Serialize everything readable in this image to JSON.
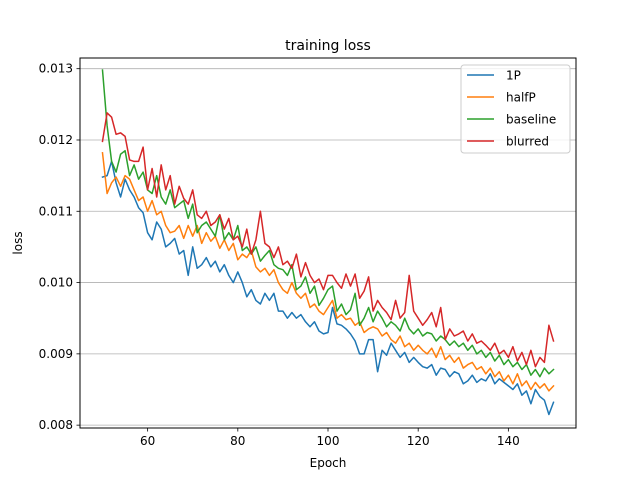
{
  "chart_data": {
    "type": "line",
    "title": "training loss",
    "xlabel": "Epoch",
    "ylabel": "loss",
    "xlim": [
      45,
      155
    ],
    "ylim": [
      0.00796,
      0.01315
    ],
    "xticks": [
      60,
      80,
      100,
      120,
      140
    ],
    "yticks": [
      0.008,
      0.009,
      0.01,
      0.011,
      0.012,
      0.013
    ],
    "grid": "horizontal",
    "legend_position": "top-right",
    "x": [
      50,
      51,
      52,
      53,
      54,
      55,
      56,
      57,
      58,
      59,
      60,
      61,
      62,
      63,
      64,
      65,
      66,
      67,
      68,
      69,
      70,
      71,
      72,
      73,
      74,
      75,
      76,
      77,
      78,
      79,
      80,
      81,
      82,
      83,
      84,
      85,
      86,
      87,
      88,
      89,
      90,
      91,
      92,
      93,
      94,
      95,
      96,
      97,
      98,
      99,
      100,
      101,
      102,
      103,
      104,
      105,
      106,
      107,
      108,
      109,
      110,
      111,
      112,
      113,
      114,
      115,
      116,
      117,
      118,
      119,
      120,
      121,
      122,
      123,
      124,
      125,
      126,
      127,
      128,
      129,
      130,
      131,
      132,
      133,
      134,
      135,
      136,
      137,
      138,
      139,
      140,
      141,
      142,
      143,
      144,
      145,
      146,
      147,
      148,
      149,
      150
    ],
    "series": [
      {
        "name": "1P",
        "color": "#1f77b4",
        "values": [
          0.01148,
          0.0115,
          0.0117,
          0.0114,
          0.0112,
          0.01145,
          0.0113,
          0.0112,
          0.01105,
          0.01098,
          0.0107,
          0.0106,
          0.01085,
          0.01075,
          0.0105,
          0.01055,
          0.01062,
          0.0104,
          0.01045,
          0.0101,
          0.0105,
          0.0102,
          0.01025,
          0.01035,
          0.01022,
          0.0103,
          0.01015,
          0.01025,
          0.0101,
          0.01,
          0.01015,
          0.01,
          0.0098,
          0.0099,
          0.00975,
          0.0097,
          0.00985,
          0.00975,
          0.00985,
          0.0096,
          0.0096,
          0.0095,
          0.00958,
          0.0095,
          0.00955,
          0.00945,
          0.00938,
          0.00945,
          0.00932,
          0.00928,
          0.0093,
          0.00965,
          0.00942,
          0.0094,
          0.00935,
          0.00928,
          0.00918,
          0.009,
          0.009,
          0.0092,
          0.0092,
          0.00875,
          0.00905,
          0.00898,
          0.00915,
          0.00905,
          0.00895,
          0.00902,
          0.00888,
          0.00895,
          0.00888,
          0.00882,
          0.0088,
          0.00885,
          0.0087,
          0.0088,
          0.00878,
          0.00868,
          0.00875,
          0.00872,
          0.00858,
          0.00862,
          0.0087,
          0.0086,
          0.00865,
          0.00862,
          0.00872,
          0.00858,
          0.00865,
          0.0086,
          0.00855,
          0.0085,
          0.00858,
          0.00842,
          0.00848,
          0.0083,
          0.0085,
          0.0084,
          0.00835,
          0.00815,
          0.00832
        ]
      },
      {
        "name": "halfP",
        "color": "#ff7f0e",
        "values": [
          0.01182,
          0.01125,
          0.0114,
          0.01148,
          0.01135,
          0.0115,
          0.01145,
          0.0113,
          0.01115,
          0.0112,
          0.011,
          0.01115,
          0.01095,
          0.011,
          0.0108,
          0.0107,
          0.01072,
          0.0108,
          0.01062,
          0.0108,
          0.01065,
          0.0108,
          0.01055,
          0.0107,
          0.01058,
          0.01065,
          0.01048,
          0.0106,
          0.01045,
          0.01055,
          0.01032,
          0.0104,
          0.01035,
          0.01045,
          0.01022,
          0.01015,
          0.0102,
          0.0101,
          0.01018,
          0.01,
          0.0099,
          0.00985,
          0.01,
          0.00985,
          0.00978,
          0.00985,
          0.00965,
          0.0097,
          0.0096,
          0.00955,
          0.00965,
          0.00975,
          0.0095,
          0.00955,
          0.00948,
          0.0095,
          0.0094,
          0.00945,
          0.0093,
          0.00935,
          0.00938,
          0.00935,
          0.00925,
          0.0093,
          0.0092,
          0.00915,
          0.00925,
          0.0091,
          0.00915,
          0.00905,
          0.00912,
          0.00905,
          0.009,
          0.00908,
          0.00895,
          0.0091,
          0.00892,
          0.00898,
          0.00888,
          0.00895,
          0.0088,
          0.00885,
          0.00888,
          0.00878,
          0.00882,
          0.00872,
          0.0088,
          0.00868,
          0.00875,
          0.00862,
          0.0087,
          0.00858,
          0.00872,
          0.00855,
          0.00862,
          0.0085,
          0.0086,
          0.00852,
          0.00858,
          0.00848,
          0.00855
        ]
      },
      {
        "name": "baseline",
        "color": "#2ca02c",
        "values": [
          0.01298,
          0.0122,
          0.0117,
          0.01155,
          0.0118,
          0.01185,
          0.0115,
          0.01165,
          0.01145,
          0.01155,
          0.0113,
          0.01125,
          0.0115,
          0.0112,
          0.0111,
          0.0113,
          0.01105,
          0.0111,
          0.01115,
          0.0109,
          0.0111,
          0.0107,
          0.0108,
          0.01085,
          0.01075,
          0.01065,
          0.01095,
          0.0106,
          0.0107,
          0.0106,
          0.0108,
          0.01045,
          0.0105,
          0.0104,
          0.0105,
          0.0103,
          0.01038,
          0.01045,
          0.01025,
          0.0102,
          0.01018,
          0.0101,
          0.01025,
          0.0099,
          0.00995,
          0.01008,
          0.00985,
          0.00995,
          0.00968,
          0.00978,
          0.0099,
          0.00995,
          0.0096,
          0.0097,
          0.00955,
          0.00962,
          0.00985,
          0.0094,
          0.0095,
          0.00965,
          0.00945,
          0.0096,
          0.0095,
          0.00938,
          0.00945,
          0.0094,
          0.00932,
          0.0095,
          0.00935,
          0.00928,
          0.00935,
          0.00925,
          0.0093,
          0.00928,
          0.00918,
          0.00925,
          0.0092,
          0.00912,
          0.00918,
          0.0091,
          0.00915,
          0.00905,
          0.00912,
          0.009,
          0.00905,
          0.00895,
          0.00902,
          0.0089,
          0.00898,
          0.00885,
          0.00892,
          0.00882,
          0.00888,
          0.00878,
          0.00885,
          0.0087,
          0.00878,
          0.00868,
          0.0088,
          0.00872,
          0.00878
        ]
      },
      {
        "name": "blurred",
        "color": "#d62728",
        "values": [
          0.01198,
          0.01238,
          0.01232,
          0.01208,
          0.0121,
          0.01205,
          0.01172,
          0.0117,
          0.0117,
          0.0119,
          0.0113,
          0.0116,
          0.0112,
          0.01165,
          0.0113,
          0.0115,
          0.0111,
          0.01135,
          0.01118,
          0.0111,
          0.0113,
          0.01095,
          0.0109,
          0.011,
          0.0108,
          0.01085,
          0.01095,
          0.01075,
          0.0109,
          0.0106,
          0.01065,
          0.0105,
          0.01075,
          0.0104,
          0.0106,
          0.011,
          0.01055,
          0.0105,
          0.01035,
          0.0105,
          0.01025,
          0.0103,
          0.0102,
          0.0104,
          0.01008,
          0.01028,
          0.0101,
          0.01,
          0.01005,
          0.0099,
          0.0101,
          0.0101,
          0.01,
          0.00992,
          0.01012,
          0.00995,
          0.01012,
          0.00978,
          0.00988,
          0.01008,
          0.0096,
          0.00975,
          0.00965,
          0.00958,
          0.00948,
          0.00975,
          0.0095,
          0.00958,
          0.0101,
          0.0096,
          0.0095,
          0.0094,
          0.00948,
          0.00958,
          0.00938,
          0.00965,
          0.0092,
          0.00935,
          0.00925,
          0.00928,
          0.00932,
          0.00918,
          0.00928,
          0.00915,
          0.00918,
          0.00912,
          0.00905,
          0.00915,
          0.009,
          0.00905,
          0.00895,
          0.0091,
          0.0089,
          0.00902,
          0.00885,
          0.00905,
          0.00882,
          0.00895,
          0.00888,
          0.0094,
          0.00918
        ]
      }
    ]
  }
}
